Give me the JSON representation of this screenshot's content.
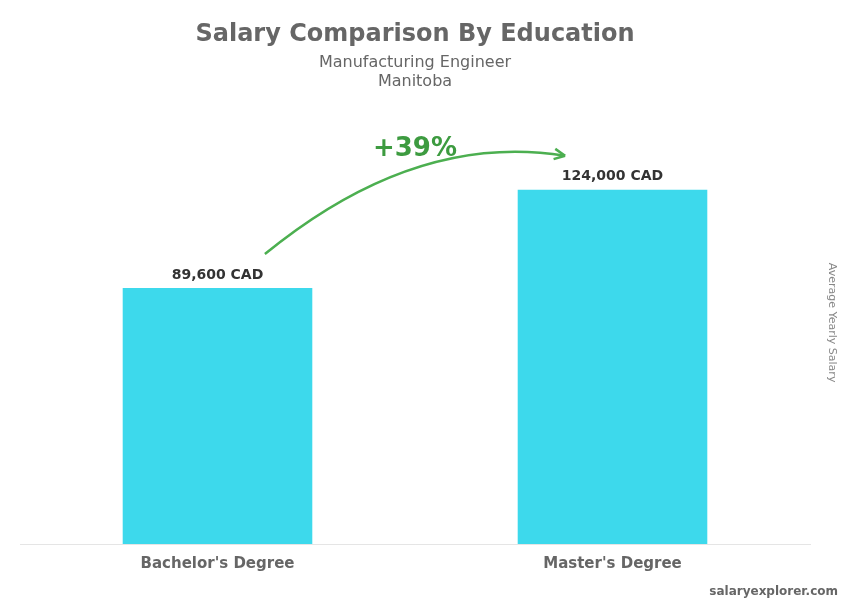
{
  "chart_data": {
    "type": "bar",
    "title": "Salary Comparison By Education",
    "subtitle": "Manufacturing Engineer",
    "categories": [
      "Bachelor's Degree",
      "Master's Degree"
    ],
    "values": [
      89600,
      124000
    ],
    "value_labels": [
      "89,600 CAD",
      "124,000 CAD"
    ],
    "data_labels": true,
    "color": "#3DD9EC",
    "ylim": [
      0,
      155000
    ],
    "grid": false,
    "tick_labels": "x",
    "annotations": [
      "Manitoba",
      "+39%",
      "salaryexplorer.com",
      "Average Yearly Salary"
    ]
  }
}
